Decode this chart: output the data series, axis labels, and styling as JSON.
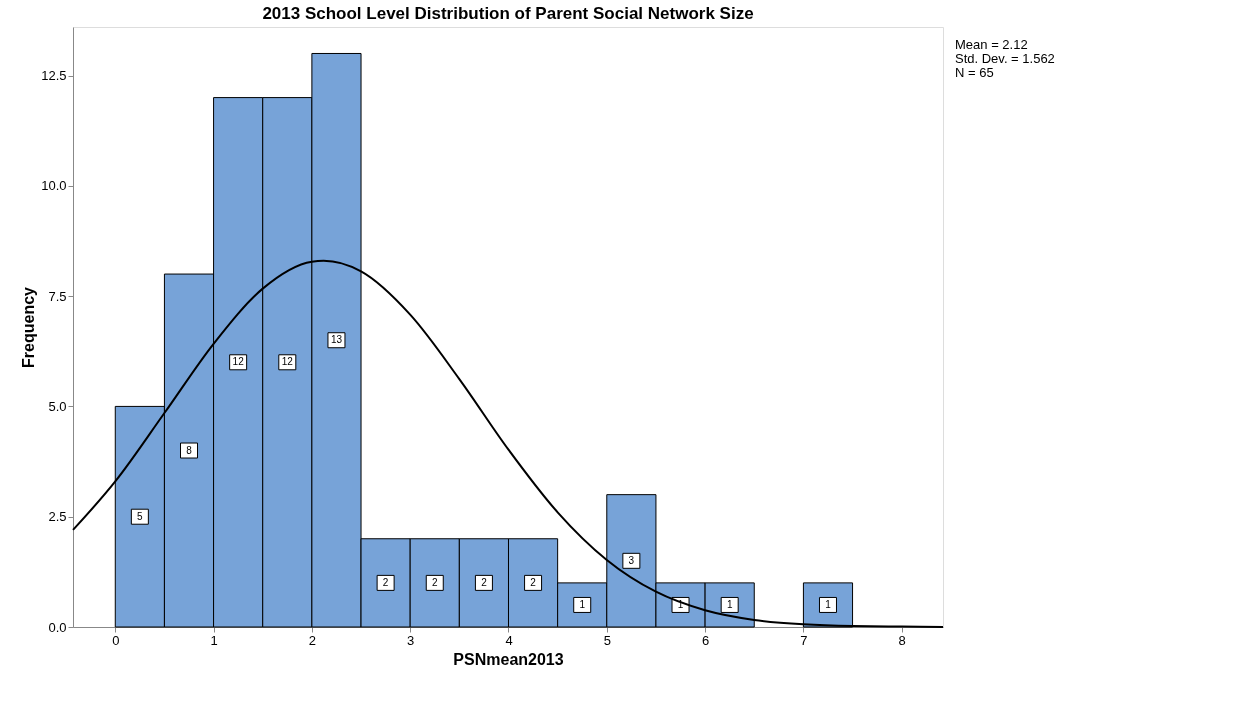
{
  "chart_data": {
    "type": "histogram",
    "title": "2013 School Level Distribution of Parent Social Network Size",
    "xlabel": "PSNmean2013",
    "ylabel": "Frequency",
    "bins": [
      0,
      0.5,
      1,
      1.5,
      2,
      2.5,
      3,
      3.5,
      4,
      4.5,
      5,
      5.5,
      6,
      6.5,
      7,
      7.5
    ],
    "values": [
      5,
      8,
      12,
      12,
      13,
      2,
      2,
      2,
      2,
      1,
      3,
      1,
      1,
      0,
      1
    ],
    "color": "#77a3d8",
    "value_labels": [
      "5",
      "8",
      "12",
      "12",
      "13",
      "2",
      "2",
      "2",
      "2",
      "1",
      "3",
      "1",
      "1",
      null,
      "1"
    ],
    "series": [
      {
        "type": "line",
        "color": "#000000",
        "x": [
          -0.43,
          0,
          0.5,
          1,
          1.5,
          2,
          2.12,
          2.5,
          3,
          3.5,
          4,
          4.5,
          5,
          5.5,
          6,
          6.5,
          7,
          7.5,
          8,
          8.42
        ],
        "values": [
          2.2,
          3.3,
          4.85,
          6.42,
          7.67,
          8.28,
          8.3,
          8.06,
          7.08,
          5.62,
          4.02,
          2.6,
          1.52,
          0.8,
          0.38,
          0.16,
          0.06,
          0.02,
          0.01,
          0
        ]
      }
    ],
    "xlim": [
      -0.43,
      8.42
    ],
    "xticks": [
      0,
      1,
      2,
      3,
      4,
      5,
      6,
      7,
      8
    ],
    "ylim": [
      0,
      13.6
    ],
    "yticks": [
      {
        "value": 0,
        "label": "0.0"
      },
      {
        "value": 2.5,
        "label": "2.5"
      },
      {
        "value": 5,
        "label": "5.0"
      },
      {
        "value": 7.5,
        "label": "7.5"
      },
      {
        "value": 10,
        "label": "10.0"
      },
      {
        "value": 12.5,
        "label": "12.5"
      }
    ],
    "grid": false,
    "annotations": [
      "Mean = 2.12",
      "Std. Dev. = 1.562",
      "N = 65"
    ]
  }
}
